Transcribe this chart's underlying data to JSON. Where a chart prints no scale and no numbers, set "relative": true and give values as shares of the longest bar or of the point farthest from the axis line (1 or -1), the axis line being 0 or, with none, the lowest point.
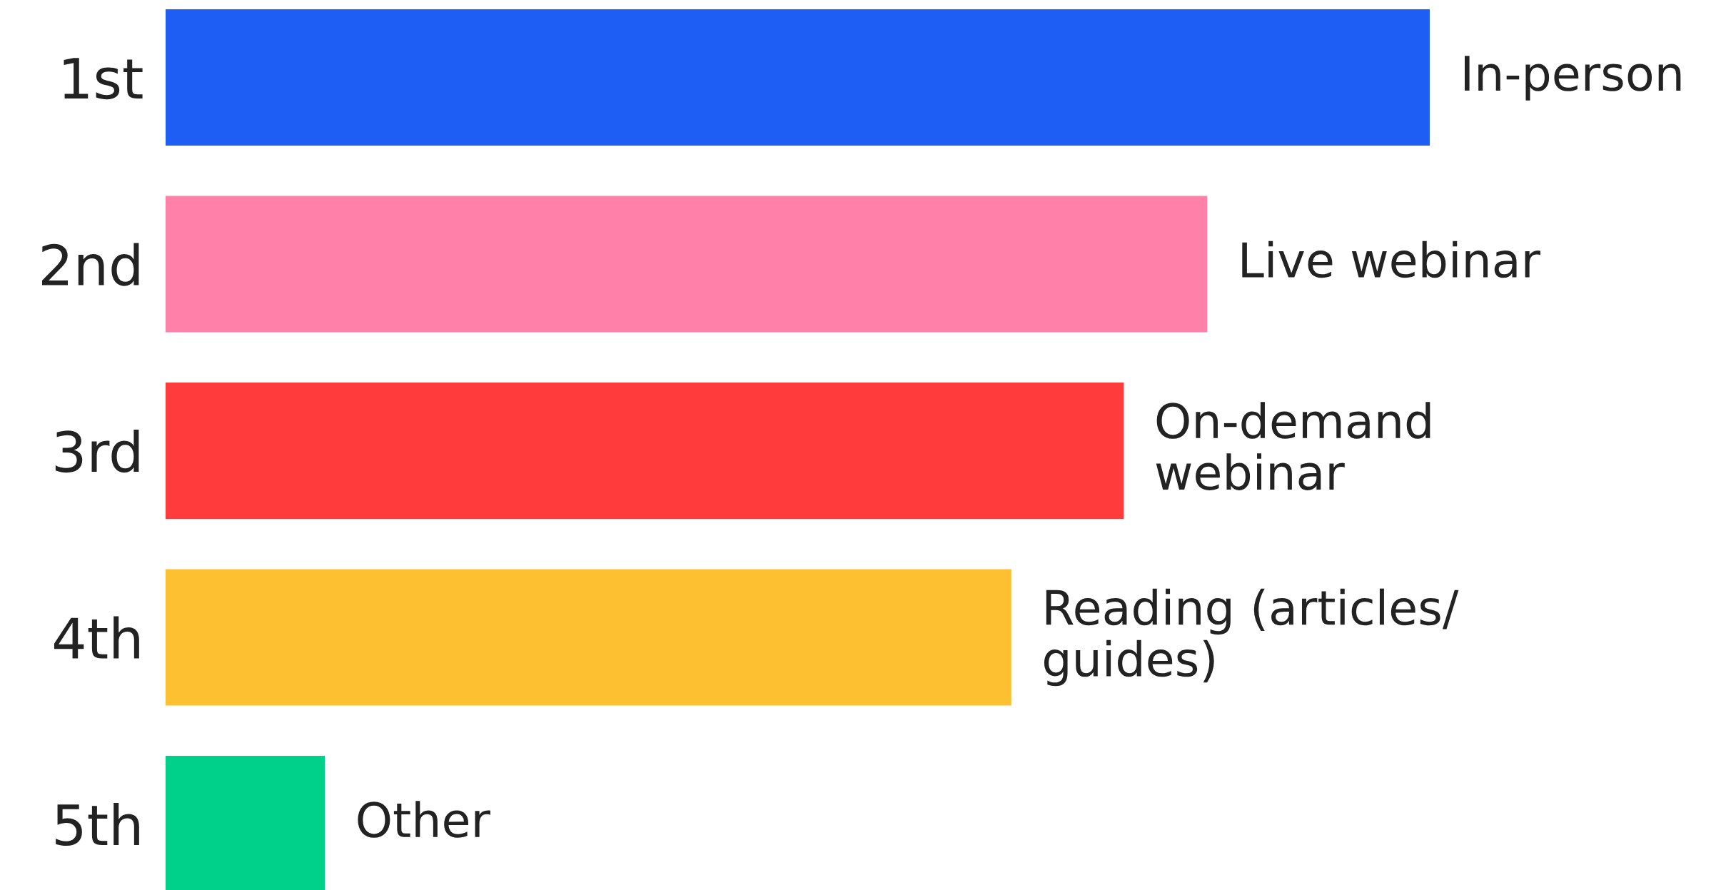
{
  "chart_data": {
    "type": "bar",
    "orientation": "horizontal",
    "relative": true,
    "categories": [
      "1st",
      "2nd",
      "3rd",
      "4th",
      "5th"
    ],
    "values": [
      1,
      0.824,
      0.758,
      0.669,
      0.126
    ],
    "colors": [
      "#1f5ef5",
      "#ff80a8",
      "#ff3b3b",
      "#fdc031",
      "#00d18a"
    ],
    "annotations": [
      {
        "text": "In-person",
        "x": 1,
        "y": "1st"
      },
      {
        "text": "Live webinar",
        "x": 0.824,
        "y": "2nd"
      },
      {
        "text": "On-demand\nwebinar",
        "x": 0.758,
        "y": "3rd"
      },
      {
        "text": "Reading (articles/\nguides)",
        "x": 0.669,
        "y": "4th"
      },
      {
        "text": "Other",
        "x": 0.126,
        "y": "5th"
      }
    ],
    "grid": false
  }
}
